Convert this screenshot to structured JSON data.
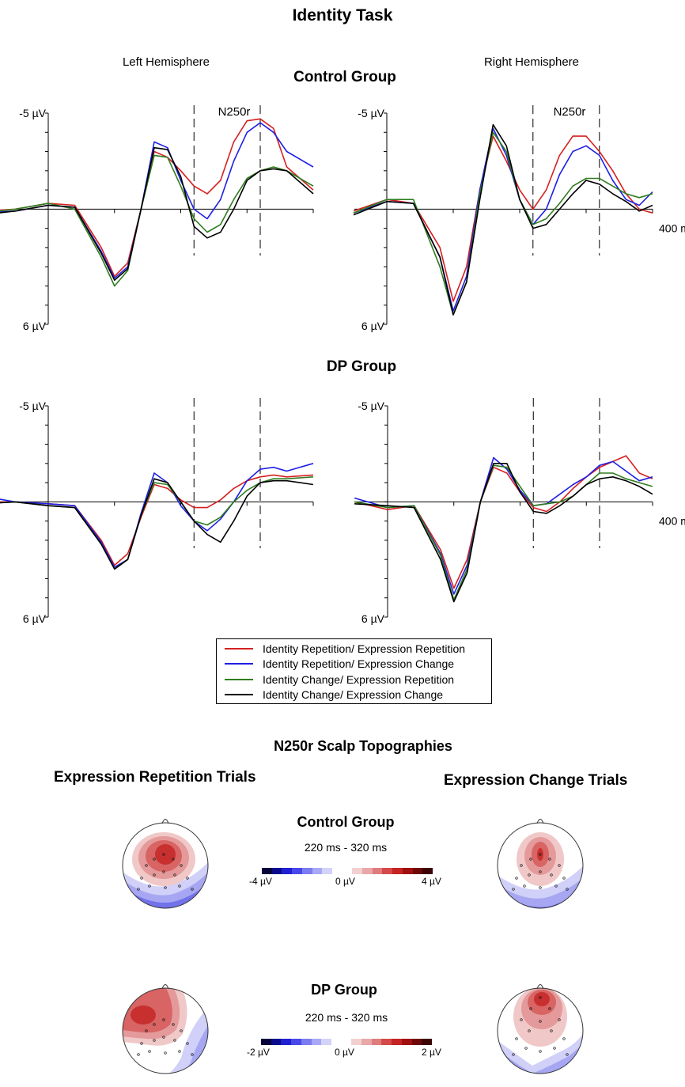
{
  "figure": {
    "title": "Identity Task",
    "hemispheres": {
      "left": "Left Hemisphere",
      "right": "Right Hemisphere"
    },
    "groups": {
      "control": "Control Group",
      "dp": "DP Group"
    },
    "component_label": "N250r",
    "y_top_label": "-5 µV",
    "y_bottom_label": "6 µV",
    "x_end_label": "400 ms"
  },
  "legend": [
    {
      "label": "Identity Repetition/ Expression Repetition",
      "color": "#d62020"
    },
    {
      "label": "Identity Repetition/ Expression Change",
      "color": "#1f1fe6"
    },
    {
      "label": "Identity Change/ Expression Repetition",
      "color": "#2e7d1e"
    },
    {
      "label": "Identity Change/ Expression Change",
      "color": "#000000"
    }
  ],
  "topographies": {
    "title": "N250r Scalp Topographies",
    "columns": {
      "left": "Expression Repetition Trials",
      "right": "Expression Change Trials"
    },
    "control": {
      "group": "Control Group",
      "window": "220 ms - 320 ms",
      "scale_min": "-4 µV",
      "scale_mid": "0 µV",
      "scale_max": "4 µV"
    },
    "dp": {
      "group": "DP Group",
      "window": "220 ms - 320 ms",
      "scale_min": "-2 µV",
      "scale_mid": "0 µV",
      "scale_max": "2 µV"
    },
    "colorscale": [
      "#05053c",
      "#0a0a8c",
      "#2020d2",
      "#4848ea",
      "#7c7cf0",
      "#a8a8f6",
      "#d2d2fa",
      "#ffffff",
      "#ffffff",
      "#f2d0d0",
      "#e8a8a8",
      "#e07c7c",
      "#d44a4a",
      "#c42424",
      "#a01010",
      "#6e0808",
      "#3c0404"
    ]
  },
  "chart_data": [
    {
      "type": "line",
      "panel": "Control Group - Left Hemisphere",
      "x_unit": "ms",
      "xlim": [
        -100,
        400
      ],
      "ylim": [
        -5,
        6
      ],
      "y_inverted": true,
      "markers_ms": [
        220,
        320
      ],
      "marker_label": "N250r",
      "series": [
        {
          "name": "Identity Repetition/ Expression Repetition",
          "x": [
            -100,
            -50,
            0,
            40,
            80,
            100,
            120,
            140,
            160,
            180,
            200,
            220,
            240,
            260,
            280,
            300,
            320,
            340,
            360,
            400
          ],
          "y": [
            0.1,
            0.0,
            -0.3,
            -0.2,
            2.0,
            3.5,
            2.8,
            0.0,
            -3.0,
            -2.7,
            -2.0,
            -1.2,
            -0.8,
            -1.5,
            -3.5,
            -4.6,
            -4.7,
            -4.2,
            -2.2,
            -1.0
          ]
        },
        {
          "name": "Identity Repetition/ Expression Change",
          "x": [
            -100,
            -50,
            0,
            40,
            80,
            100,
            120,
            140,
            160,
            180,
            200,
            220,
            240,
            260,
            280,
            300,
            320,
            340,
            360,
            400
          ],
          "y": [
            0.2,
            0.1,
            -0.2,
            -0.1,
            2.2,
            3.6,
            3.0,
            0.0,
            -3.5,
            -3.2,
            -1.5,
            0.0,
            0.5,
            -0.5,
            -2.5,
            -4.0,
            -4.5,
            -4.0,
            -3.0,
            -2.2
          ]
        },
        {
          "name": "Identity Change/ Expression Repetition",
          "x": [
            -100,
            -50,
            0,
            40,
            80,
            100,
            120,
            140,
            160,
            180,
            200,
            220,
            240,
            260,
            280,
            300,
            320,
            340,
            360,
            400
          ],
          "y": [
            0.2,
            0.0,
            -0.3,
            0.0,
            2.5,
            4.0,
            3.2,
            0.0,
            -2.8,
            -2.7,
            -1.2,
            0.5,
            1.2,
            0.8,
            -0.5,
            -1.6,
            -2.0,
            -2.2,
            -2.0,
            -1.2
          ]
        },
        {
          "name": "Identity Change/ Expression Change",
          "x": [
            -100,
            -50,
            0,
            40,
            80,
            100,
            120,
            140,
            160,
            180,
            200,
            220,
            240,
            260,
            280,
            300,
            320,
            340,
            360,
            400
          ],
          "y": [
            0.3,
            0.1,
            -0.2,
            -0.1,
            2.3,
            3.7,
            3.1,
            0.0,
            -3.2,
            -3.1,
            -1.7,
            0.9,
            1.5,
            1.2,
            0.0,
            -1.5,
            -2.0,
            -2.1,
            -2.0,
            -0.8
          ]
        }
      ]
    },
    {
      "type": "line",
      "panel": "Control Group - Right Hemisphere",
      "x_unit": "ms",
      "xlim": [
        -50,
        400
      ],
      "ylim": [
        -5,
        6
      ],
      "y_inverted": true,
      "markers_ms": [
        220,
        320
      ],
      "marker_label": "N250r",
      "series": [
        {
          "name": "Identity Repetition/ Expression Repetition",
          "x": [
            -50,
            0,
            40,
            80,
            100,
            120,
            140,
            160,
            180,
            200,
            220,
            240,
            260,
            280,
            300,
            320,
            340,
            360,
            380,
            400
          ],
          "y": [
            0.1,
            -0.5,
            -0.3,
            2.0,
            4.8,
            3.0,
            -1.0,
            -3.8,
            -2.5,
            -1.0,
            0.0,
            -1.0,
            -2.8,
            -3.8,
            -3.8,
            -3.0,
            -2.0,
            -0.8,
            0.0,
            0.2
          ]
        },
        {
          "name": "Identity Repetition/ Expression Change",
          "x": [
            -50,
            0,
            40,
            80,
            100,
            120,
            140,
            160,
            180,
            200,
            220,
            240,
            260,
            280,
            300,
            320,
            340,
            360,
            380,
            400
          ],
          "y": [
            0.2,
            -0.4,
            -0.3,
            2.5,
            5.3,
            3.5,
            -1.0,
            -4.2,
            -2.8,
            -0.5,
            0.8,
            0.0,
            -1.8,
            -3.0,
            -3.3,
            -2.8,
            -1.5,
            -0.5,
            -0.2,
            -0.9
          ]
        },
        {
          "name": "Identity Change/ Expression Repetition",
          "x": [
            -50,
            0,
            40,
            80,
            100,
            120,
            140,
            160,
            180,
            200,
            220,
            240,
            260,
            280,
            300,
            320,
            340,
            360,
            380,
            400
          ],
          "y": [
            0.2,
            -0.5,
            -0.5,
            3.0,
            5.5,
            3.8,
            -0.8,
            -4.0,
            -3.0,
            -0.5,
            0.8,
            0.5,
            -0.3,
            -1.2,
            -1.6,
            -1.6,
            -1.2,
            -0.8,
            -0.6,
            -0.8
          ]
        },
        {
          "name": "Identity Change/ Expression Change",
          "x": [
            -50,
            0,
            40,
            80,
            100,
            120,
            140,
            160,
            180,
            200,
            220,
            240,
            260,
            280,
            300,
            320,
            340,
            360,
            380,
            400
          ],
          "y": [
            0.3,
            -0.4,
            -0.3,
            2.5,
            5.5,
            3.8,
            -0.5,
            -4.4,
            -3.3,
            -0.5,
            1.0,
            0.8,
            0.0,
            -0.8,
            -1.5,
            -1.3,
            -0.8,
            -0.4,
            0.1,
            -0.2
          ]
        }
      ]
    },
    {
      "type": "line",
      "panel": "DP Group - Left Hemisphere",
      "x_unit": "ms",
      "xlim": [
        -100,
        400
      ],
      "ylim": [
        -5,
        6
      ],
      "y_inverted": true,
      "markers_ms": [
        220,
        320
      ],
      "series": [
        {
          "name": "Identity Repetition/ Expression Repetition",
          "x": [
            -100,
            -50,
            0,
            40,
            80,
            100,
            120,
            140,
            160,
            180,
            200,
            220,
            240,
            260,
            280,
            300,
            320,
            340,
            360,
            400
          ],
          "y": [
            0.0,
            0.0,
            0.1,
            0.2,
            2.0,
            3.3,
            2.7,
            0.8,
            -0.9,
            -0.7,
            -0.1,
            0.3,
            0.3,
            -0.1,
            -0.7,
            -1.1,
            -1.3,
            -1.4,
            -1.3,
            -1.4
          ]
        },
        {
          "name": "Identity Repetition/ Expression Change",
          "x": [
            -100,
            -50,
            0,
            40,
            80,
            100,
            120,
            140,
            160,
            180,
            200,
            220,
            240,
            260,
            280,
            300,
            320,
            340,
            360,
            400
          ],
          "y": [
            -0.3,
            0.0,
            0.1,
            0.2,
            2.1,
            3.4,
            3.0,
            0.6,
            -1.5,
            -1.0,
            0.2,
            1.0,
            1.5,
            0.9,
            0.0,
            -1.1,
            -1.7,
            -1.8,
            -1.6,
            -2.0
          ]
        },
        {
          "name": "Identity Change/ Expression Repetition",
          "x": [
            -100,
            -50,
            0,
            40,
            80,
            100,
            120,
            140,
            160,
            180,
            200,
            220,
            240,
            260,
            280,
            300,
            320,
            340,
            360,
            400
          ],
          "y": [
            0.1,
            0.0,
            0.2,
            0.3,
            2.2,
            3.5,
            3.0,
            0.7,
            -1.0,
            -0.9,
            0.0,
            1.0,
            1.2,
            0.8,
            0.0,
            -0.6,
            -1.0,
            -1.2,
            -1.2,
            -1.3
          ]
        },
        {
          "name": "Identity Change/ Expression Change",
          "x": [
            -100,
            -50,
            0,
            40,
            80,
            100,
            120,
            140,
            160,
            180,
            200,
            220,
            240,
            260,
            280,
            300,
            320,
            340,
            360,
            400
          ],
          "y": [
            0.1,
            0.0,
            0.2,
            0.3,
            2.2,
            3.5,
            3.0,
            0.7,
            -1.2,
            -1.0,
            0.0,
            1.0,
            1.7,
            2.1,
            1.0,
            -0.3,
            -1.0,
            -1.1,
            -1.1,
            -0.9
          ]
        }
      ]
    },
    {
      "type": "line",
      "panel": "DP Group - Right Hemisphere",
      "x_unit": "ms",
      "xlim": [
        -50,
        400
      ],
      "ylim": [
        -5,
        6
      ],
      "y_inverted": true,
      "markers_ms": [
        220,
        320
      ],
      "series": [
        {
          "name": "Identity Repetition/ Expression Repetition",
          "x": [
            -50,
            0,
            40,
            80,
            100,
            120,
            140,
            160,
            180,
            200,
            220,
            240,
            260,
            280,
            300,
            320,
            340,
            360,
            380,
            400
          ],
          "y": [
            0.0,
            0.4,
            0.2,
            2.5,
            4.5,
            3.0,
            0.0,
            -1.8,
            -1.5,
            -0.5,
            0.3,
            0.5,
            0.0,
            -0.7,
            -1.3,
            -1.8,
            -2.1,
            -2.4,
            -1.5,
            -1.2
          ]
        },
        {
          "name": "Identity Repetition/ Expression Change",
          "x": [
            -50,
            0,
            40,
            80,
            100,
            120,
            140,
            160,
            180,
            200,
            220,
            240,
            260,
            280,
            300,
            320,
            340,
            360,
            380,
            400
          ],
          "y": [
            -0.2,
            0.3,
            0.2,
            2.7,
            4.8,
            3.3,
            0.0,
            -2.3,
            -1.7,
            -0.6,
            0.2,
            0.1,
            -0.4,
            -0.9,
            -1.3,
            -1.9,
            -2.1,
            -1.6,
            -1.1,
            -1.3
          ]
        },
        {
          "name": "Identity Change/ Expression Repetition",
          "x": [
            -50,
            0,
            40,
            80,
            100,
            120,
            140,
            160,
            180,
            200,
            220,
            240,
            260,
            280,
            300,
            320,
            340,
            360,
            380,
            400
          ],
          "y": [
            0.0,
            0.3,
            0.2,
            2.8,
            5.1,
            3.5,
            0.0,
            -1.9,
            -1.8,
            -0.8,
            0.2,
            0.1,
            0.0,
            -0.3,
            -0.9,
            -1.5,
            -1.5,
            -1.2,
            -1.0,
            -0.8
          ]
        },
        {
          "name": "Identity Change/ Expression Change",
          "x": [
            -50,
            0,
            40,
            80,
            100,
            120,
            140,
            160,
            180,
            200,
            220,
            240,
            260,
            280,
            300,
            320,
            340,
            360,
            380,
            400
          ],
          "y": [
            0.1,
            0.2,
            0.3,
            3.0,
            5.2,
            3.7,
            0.0,
            -2.0,
            -2.0,
            -0.5,
            0.5,
            0.6,
            0.2,
            -0.3,
            -0.9,
            -1.2,
            -1.3,
            -1.1,
            -0.8,
            -0.4
          ]
        }
      ]
    }
  ]
}
